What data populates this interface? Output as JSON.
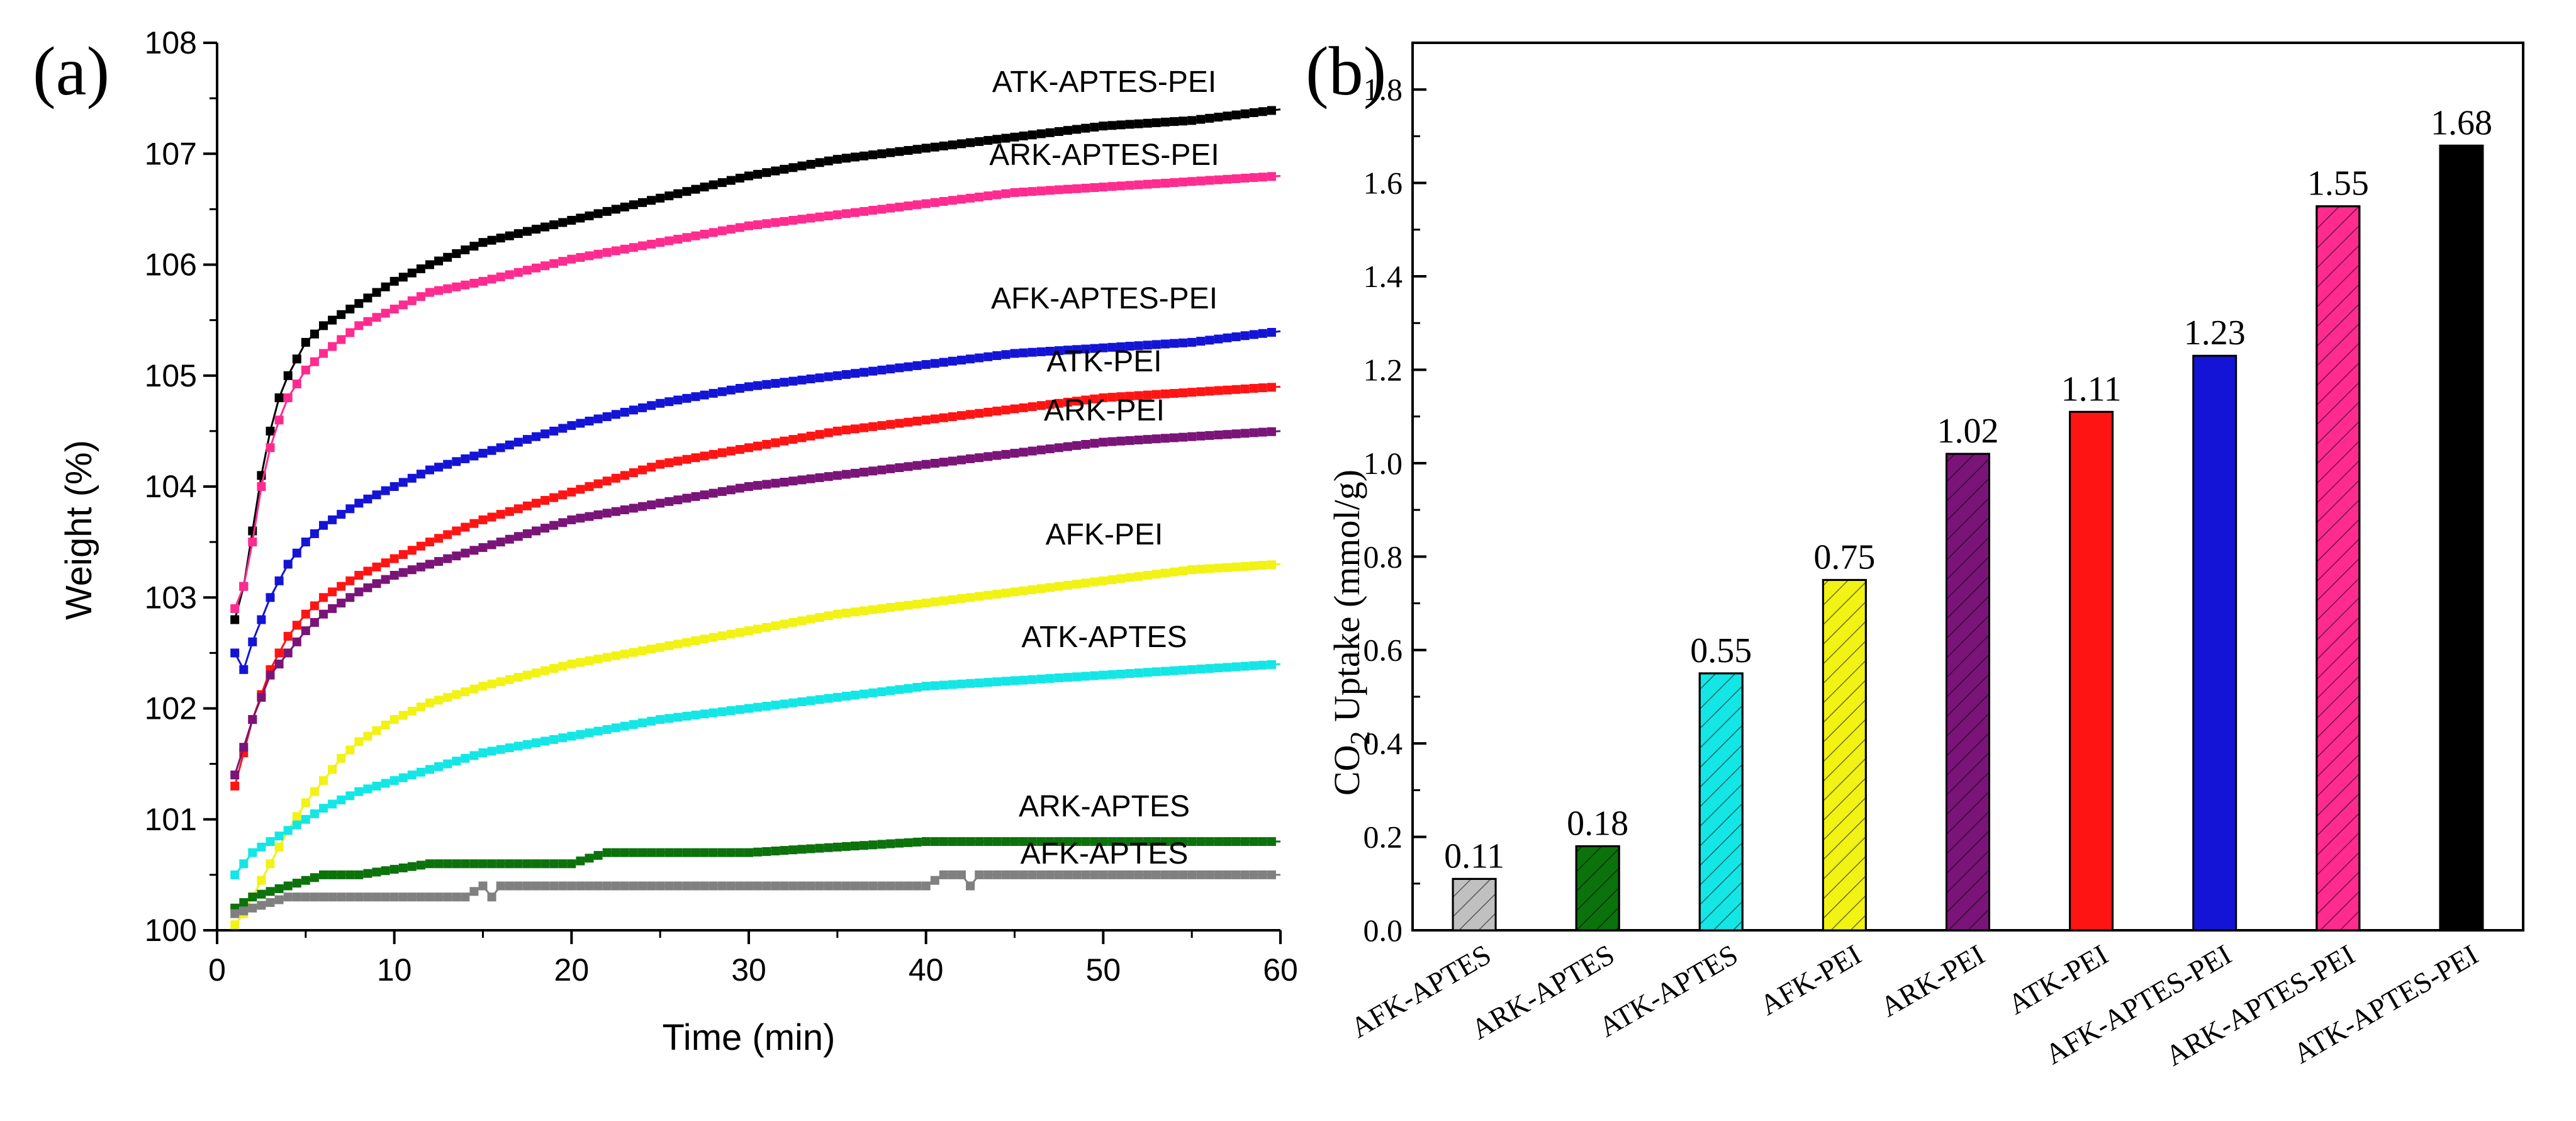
{
  "chart_data": [
    {
      "panel": "(a)",
      "type": "line",
      "xlabel": "Time (min)",
      "ylabel": "Weight (%)",
      "xlim": [
        0,
        60
      ],
      "ylim": [
        100,
        108
      ],
      "xticks": [
        "0",
        "10",
        "20",
        "30",
        "40",
        "50",
        "60"
      ],
      "yticks": [
        "100",
        "101",
        "102",
        "103",
        "104",
        "105",
        "106",
        "107",
        "108"
      ],
      "series": [
        {
          "name": "ATK-APTES-PEI",
          "color": "#000000",
          "x": [
            1,
            1.5,
            2,
            2.5,
            3,
            3.5,
            4,
            5,
            6,
            8,
            10,
            12,
            15,
            20,
            25,
            30,
            35,
            40,
            45,
            50,
            55,
            60
          ],
          "y": [
            102.8,
            103.1,
            103.6,
            104.1,
            104.5,
            104.8,
            105.0,
            105.3,
            105.45,
            105.65,
            105.85,
            106.0,
            106.2,
            106.4,
            106.6,
            106.8,
            106.95,
            107.05,
            107.15,
            107.25,
            107.3,
            107.4
          ]
        },
        {
          "name": "ARK-APTES-PEI",
          "color": "#ff2b8f",
          "x": [
            1,
            1.5,
            2,
            2.5,
            3,
            3.5,
            4,
            5,
            6,
            8,
            10,
            12,
            15,
            20,
            25,
            30,
            35,
            40,
            45,
            50,
            55,
            60
          ],
          "y": [
            102.9,
            103.1,
            103.5,
            104.0,
            104.35,
            104.6,
            104.8,
            105.05,
            105.2,
            105.45,
            105.6,
            105.75,
            105.85,
            106.05,
            106.2,
            106.35,
            106.45,
            106.55,
            106.65,
            106.7,
            106.75,
            106.8
          ]
        },
        {
          "name": "AFK-APTES-PEI",
          "color": "#1414d6",
          "x": [
            1,
            1.5,
            2,
            3,
            4,
            5,
            6,
            8,
            10,
            12,
            15,
            20,
            25,
            30,
            35,
            40,
            45,
            50,
            55,
            60
          ],
          "y": [
            102.5,
            102.35,
            102.6,
            103.0,
            103.3,
            103.5,
            103.65,
            103.85,
            104.0,
            104.15,
            104.3,
            104.55,
            104.75,
            104.9,
            105.0,
            105.1,
            105.2,
            105.25,
            105.3,
            105.4
          ]
        },
        {
          "name": "ATK-PEI",
          "color": "#ff1414",
          "x": [
            1,
            1.5,
            2,
            3,
            4,
            5,
            6,
            8,
            10,
            12,
            15,
            20,
            25,
            30,
            35,
            40,
            45,
            50,
            55,
            60
          ],
          "y": [
            101.3,
            101.6,
            101.9,
            102.35,
            102.65,
            102.85,
            103.0,
            103.2,
            103.35,
            103.5,
            103.7,
            103.95,
            104.2,
            104.35,
            104.5,
            104.6,
            104.7,
            104.8,
            104.85,
            104.9
          ]
        },
        {
          "name": "ARK-PEI",
          "color": "#7a1478",
          "x": [
            1,
            1.5,
            2,
            3,
            4,
            5,
            6,
            8,
            10,
            12,
            15,
            20,
            25,
            30,
            35,
            40,
            45,
            50,
            55,
            60
          ],
          "y": [
            101.4,
            101.65,
            101.9,
            102.3,
            102.5,
            102.7,
            102.85,
            103.05,
            103.2,
            103.3,
            103.45,
            103.7,
            103.85,
            104.0,
            104.1,
            104.2,
            104.3,
            104.4,
            104.45,
            104.5
          ]
        },
        {
          "name": "AFK-PEI",
          "color": "#f2f214",
          "x": [
            1,
            1.5,
            2,
            3,
            4,
            5,
            6,
            7,
            8,
            10,
            12,
            15,
            20,
            25,
            30,
            35,
            40,
            45,
            50,
            55,
            60
          ],
          "y": [
            100.05,
            100.15,
            100.3,
            100.6,
            100.9,
            101.15,
            101.35,
            101.55,
            101.7,
            101.9,
            102.05,
            102.2,
            102.4,
            102.55,
            102.7,
            102.85,
            102.95,
            103.05,
            103.15,
            103.25,
            103.3
          ]
        },
        {
          "name": "ATK-APTES",
          "color": "#14e6e6",
          "x": [
            1,
            1.5,
            2,
            3,
            4,
            5,
            6,
            8,
            10,
            12,
            15,
            20,
            25,
            30,
            35,
            40,
            45,
            50,
            55,
            60
          ],
          "y": [
            100.5,
            100.6,
            100.7,
            100.8,
            100.9,
            101.0,
            101.1,
            101.25,
            101.35,
            101.45,
            101.6,
            101.75,
            101.9,
            102.0,
            102.1,
            102.2,
            102.25,
            102.3,
            102.35,
            102.4
          ]
        },
        {
          "name": "ARK-APTES",
          "color": "#0c720c",
          "x": [
            1,
            2,
            3,
            4,
            6,
            8,
            12,
            16,
            20,
            22,
            30,
            40,
            45,
            50,
            55,
            60
          ],
          "y": [
            100.2,
            100.3,
            100.35,
            100.4,
            100.5,
            100.5,
            100.6,
            100.6,
            100.6,
            100.7,
            100.7,
            100.8,
            100.8,
            100.8,
            100.8,
            100.8
          ]
        },
        {
          "name": "AFK-APTES",
          "color": "#808080",
          "x": [
            1,
            2,
            3,
            4,
            6,
            10,
            14,
            15,
            15.5,
            16,
            20,
            30,
            40,
            41,
            42,
            42.5,
            43,
            50,
            55,
            60
          ],
          "y": [
            100.15,
            100.2,
            100.25,
            100.3,
            100.3,
            100.3,
            100.3,
            100.4,
            100.3,
            100.4,
            100.4,
            100.4,
            100.4,
            100.5,
            100.5,
            100.4,
            100.5,
            100.5,
            100.5,
            100.5
          ]
        }
      ]
    },
    {
      "panel": "(b)",
      "type": "bar",
      "ylabel": "CO2 Uptake (mmol/g)",
      "ylabel_main": "CO",
      "ylabel_sub": "2",
      "ylabel_rest": " Uptake (mmol/g)",
      "ylim": [
        0,
        1.9
      ],
      "yticks": [
        "0.0",
        "0.2",
        "0.4",
        "0.6",
        "0.8",
        "1.0",
        "1.2",
        "1.4",
        "1.6",
        "1.8"
      ],
      "categories": [
        "AFK-APTES",
        "ARK-APTES",
        "ATK-APTES",
        "AFK-PEI",
        "ARK-PEI",
        "ATK-PEI",
        "AFK-APTES-PEI",
        "ARK-APTES-PEI",
        "ATK-APTES-PEI"
      ],
      "values": [
        0.11,
        0.18,
        0.55,
        0.75,
        1.02,
        1.11,
        1.23,
        1.55,
        1.68
      ],
      "value_labels": [
        "0.11",
        "0.18",
        "0.55",
        "0.75",
        "1.02",
        "1.11",
        "1.23",
        "1.55",
        "1.68"
      ],
      "colors": [
        "#c0c0c0",
        "#0c720c",
        "#14e6e6",
        "#f2f214",
        "#7a1478",
        "#ff1414",
        "#1414d6",
        "#ff2b8f",
        "#000000"
      ],
      "hatched": [
        true,
        true,
        true,
        true,
        true,
        false,
        false,
        true,
        false
      ]
    }
  ]
}
